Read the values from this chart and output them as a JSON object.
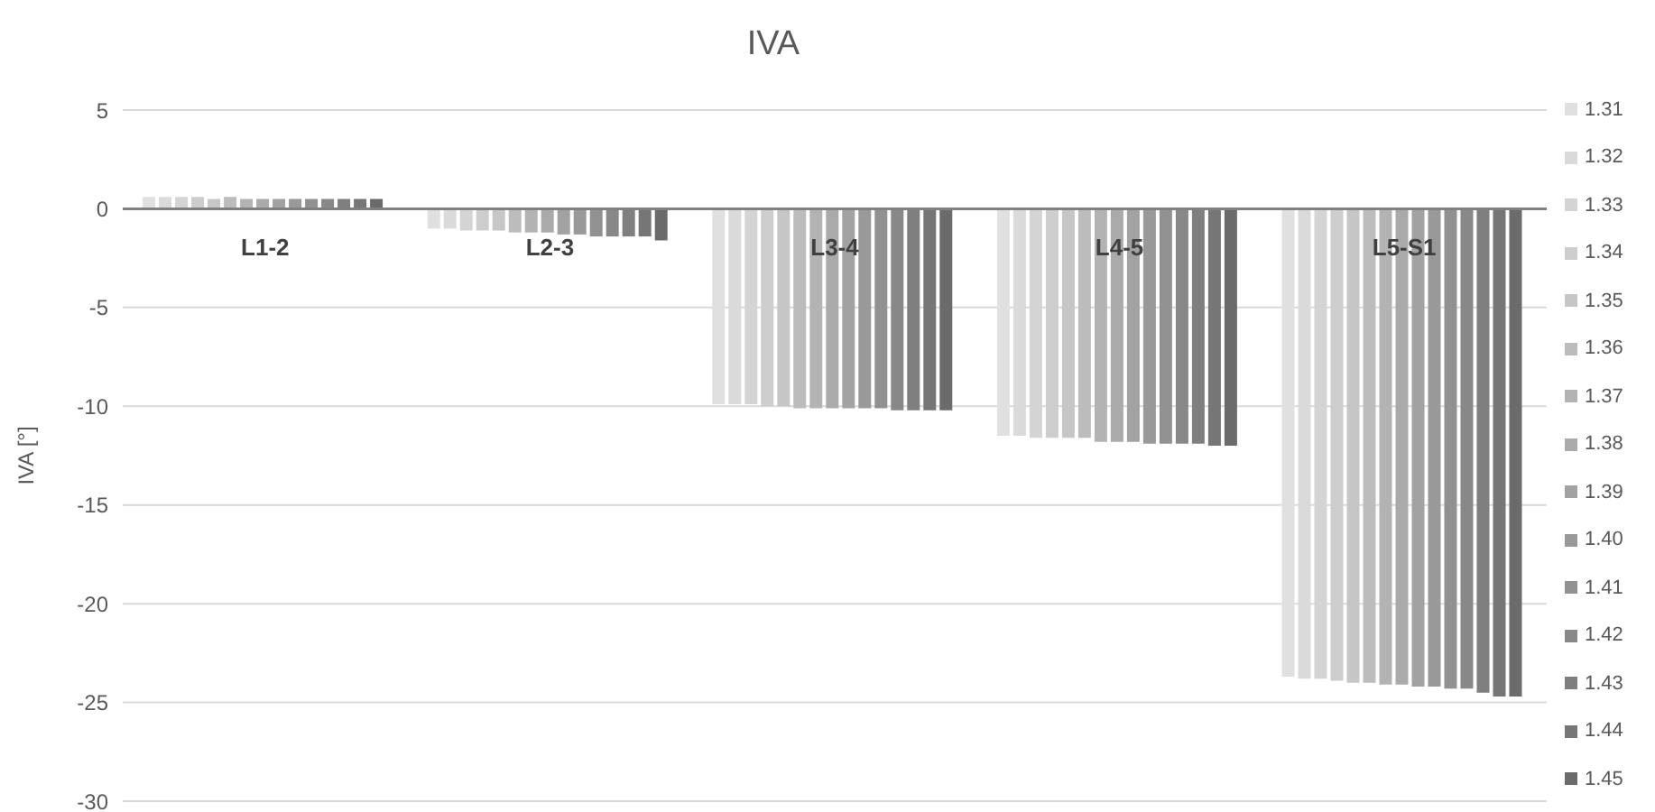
{
  "chart_data": {
    "type": "bar",
    "title": "IVA",
    "ylabel": "IVA [°]",
    "categories": [
      "L1-2",
      "L2-3",
      "L3-4",
      "L4-5",
      "L5-S1"
    ],
    "ylim": [
      -30,
      5
    ],
    "yticks": [
      -30,
      -25,
      -20,
      -15,
      -10,
      -5,
      0,
      5
    ],
    "grid": "y",
    "legend": "right",
    "series": [
      {
        "name": "1.31",
        "color": "#e0e0e0",
        "values": [
          0.6,
          -1.0,
          -9.9,
          -11.5,
          -23.7
        ]
      },
      {
        "name": "1.32",
        "color": "#dadada",
        "values": [
          0.6,
          -1.0,
          -9.9,
          -11.5,
          -23.8
        ]
      },
      {
        "name": "1.33",
        "color": "#d4d4d4",
        "values": [
          0.6,
          -1.1,
          -9.9,
          -11.6,
          -23.8
        ]
      },
      {
        "name": "1.34",
        "color": "#cdcdcd",
        "values": [
          0.6,
          -1.1,
          -10.0,
          -11.6,
          -23.9
        ]
      },
      {
        "name": "1.35",
        "color": "#c6c6c6",
        "values": [
          0.5,
          -1.1,
          -10.0,
          -11.6,
          -24.0
        ]
      },
      {
        "name": "1.36",
        "color": "#bcbcbc",
        "values": [
          0.6,
          -1.2,
          -10.1,
          -11.6,
          -24.0
        ]
      },
      {
        "name": "1.37",
        "color": "#b3b3b3",
        "values": [
          0.5,
          -1.2,
          -10.1,
          -11.8,
          -24.1
        ]
      },
      {
        "name": "1.38",
        "color": "#aaaaaa",
        "values": [
          0.5,
          -1.2,
          -10.1,
          -11.8,
          -24.1
        ]
      },
      {
        "name": "1.39",
        "color": "#a2a2a2",
        "values": [
          0.5,
          -1.3,
          -10.1,
          -11.8,
          -24.2
        ]
      },
      {
        "name": "1.40",
        "color": "#999999",
        "values": [
          0.5,
          -1.3,
          -10.1,
          -11.9,
          -24.2
        ]
      },
      {
        "name": "1.41",
        "color": "#919191",
        "values": [
          0.5,
          -1.4,
          -10.1,
          -11.9,
          -24.3
        ]
      },
      {
        "name": "1.42",
        "color": "#888888",
        "values": [
          0.5,
          -1.4,
          -10.2,
          -11.9,
          -24.3
        ]
      },
      {
        "name": "1.43",
        "color": "#7f7f7f",
        "values": [
          0.5,
          -1.4,
          -10.2,
          -11.9,
          -24.5
        ]
      },
      {
        "name": "1.44",
        "color": "#767676",
        "values": [
          0.5,
          -1.4,
          -10.2,
          -12.0,
          -24.7
        ]
      },
      {
        "name": "1.45",
        "color": "#6b6b6b",
        "values": [
          0.5,
          -1.6,
          -10.2,
          -12.0,
          -24.7
        ]
      }
    ]
  }
}
